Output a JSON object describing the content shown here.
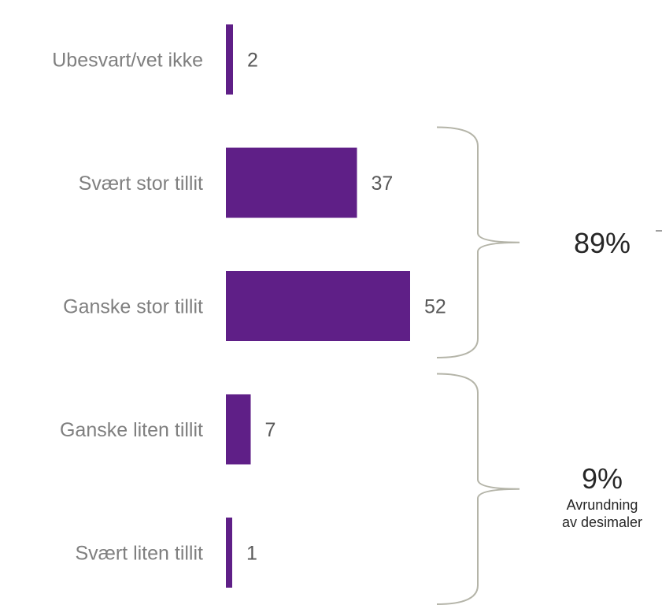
{
  "chart_data": {
    "type": "bar",
    "orientation": "horizontal",
    "categories": [
      "Ubesvart/vet ikke",
      "Svært stor tillit",
      "Ganske stor tillit",
      "Ganske liten tillit",
      "Svært liten tillit"
    ],
    "values": [
      2,
      37,
      52,
      7,
      1
    ],
    "xlim": [
      0,
      52
    ],
    "grid": false,
    "bar_color": "#5f1f87",
    "groups": [
      {
        "label": "89%",
        "note": [],
        "categories": [
          "Svært stor tillit",
          "Ganske stor tillit"
        ]
      },
      {
        "label": "9%",
        "note": [
          "Avrundning",
          "av desimaler"
        ],
        "categories": [
          "Ganske liten tillit",
          "Svært liten tillit"
        ]
      }
    ]
  }
}
